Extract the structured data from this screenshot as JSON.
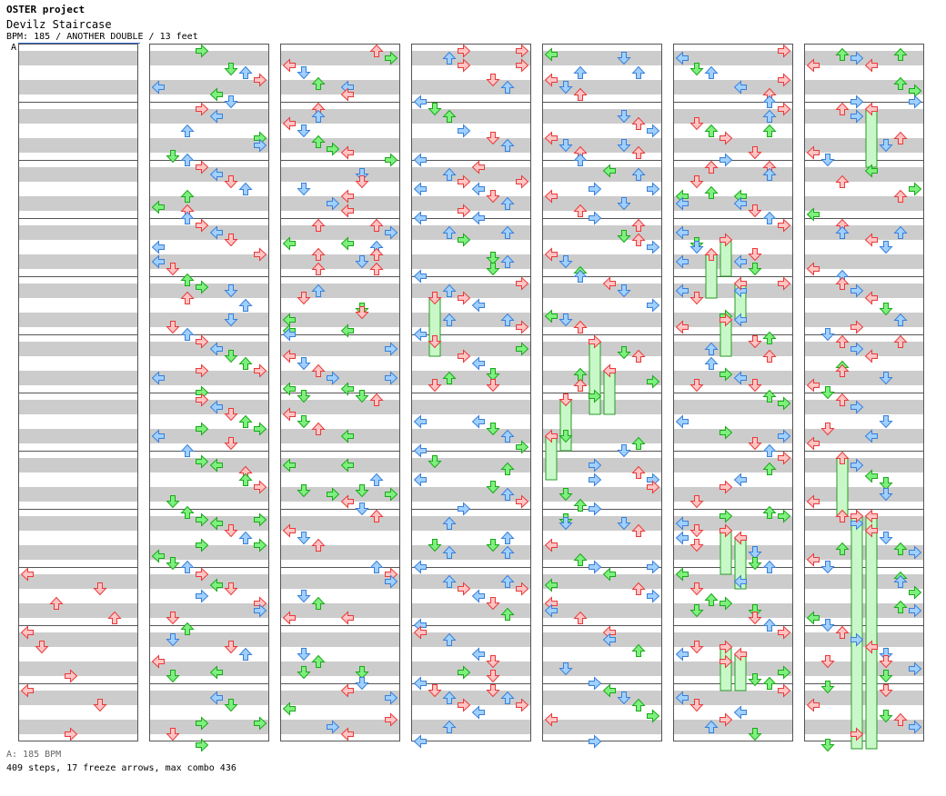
{
  "header": {
    "artist": "OSTER project",
    "title": "Devilz Staircase",
    "info": "BPM: 185 / ANOTHER DOUBLE / 13 feet"
  },
  "chart": {
    "bpm_marker": "A",
    "measures_per_column": 12,
    "columns": 7,
    "lanes": 8,
    "lanes_in_chart_order": [
      "L",
      "D",
      "U",
      "R",
      "L",
      "D",
      "U",
      "R"
    ],
    "timeline": "columns read left to right, each from top to bottom"
  },
  "footer": {
    "bpm_legend": "A: 185 BPM",
    "stats": "409 steps, 17 freeze arrows, max combo 436"
  },
  "colors": {
    "band": "#cccccc",
    "border": "#555555",
    "red_fill": "#ffc4c4",
    "red_stroke": "#e83a3a",
    "blue_fill": "#9fd0ff",
    "blue_stroke": "#3a7fd8",
    "green_fill": "#7ef07e",
    "green_stroke": "#1aa81a",
    "freeze_fill": "#c8f8c8",
    "freeze_stroke": "#2a9a2a"
  }
}
